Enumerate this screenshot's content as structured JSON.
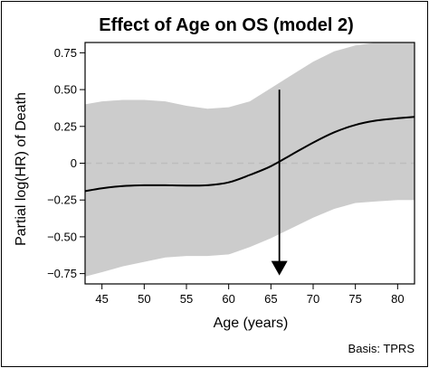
{
  "chart_data": {
    "type": "line",
    "title": "Effect of Age on OS (model 2)",
    "xlabel": "Age (years)",
    "ylabel": "Partial log(HR) of Death",
    "xlim": [
      43,
      82
    ],
    "ylim": [
      -0.82,
      0.82
    ],
    "xticks": [
      45,
      50,
      55,
      60,
      65,
      70,
      75,
      80
    ],
    "yticks": [
      0.75,
      0.5,
      0.25,
      0,
      -0.25,
      -0.5,
      -0.75
    ],
    "ytick_labels": [
      "0.75",
      "0.50",
      "0.25",
      "0",
      "−0.25",
      "−0.50",
      "−0.75"
    ],
    "reference_line": {
      "y": 0,
      "style": "dashed",
      "color": "#bdbdbd"
    },
    "series": [
      {
        "x": [
          43,
          45,
          47.5,
          50,
          52.5,
          55,
          57.5,
          60,
          62.5,
          65,
          67.5,
          70,
          72.5,
          75,
          77.5,
          80,
          82
        ],
        "values": [
          -0.19,
          -0.17,
          -0.155,
          -0.15,
          -0.15,
          -0.152,
          -0.15,
          -0.13,
          -0.08,
          -0.02,
          0.06,
          0.14,
          0.21,
          0.26,
          0.29,
          0.305,
          0.315
        ],
        "color": "#000000"
      }
    ],
    "confidence_band": {
      "x": [
        43,
        45,
        47.5,
        50,
        52.5,
        55,
        57.5,
        60,
        62.5,
        65,
        67.5,
        70,
        72.5,
        75,
        77.5,
        80,
        82
      ],
      "lower": [
        -0.77,
        -0.74,
        -0.7,
        -0.67,
        -0.64,
        -0.63,
        -0.63,
        -0.62,
        -0.57,
        -0.51,
        -0.44,
        -0.37,
        -0.31,
        -0.27,
        -0.26,
        -0.25,
        -0.25
      ],
      "upper": [
        0.4,
        0.42,
        0.43,
        0.43,
        0.42,
        0.39,
        0.37,
        0.38,
        0.42,
        0.51,
        0.6,
        0.69,
        0.76,
        0.8,
        0.82,
        0.82,
        0.82
      ],
      "color": "#cccccc"
    },
    "annotation_arrow": {
      "x": 66,
      "y_from": 0.5,
      "y_to": -0.75
    },
    "note": "Basis: TPRS",
    "grid": false,
    "legend": "none"
  }
}
